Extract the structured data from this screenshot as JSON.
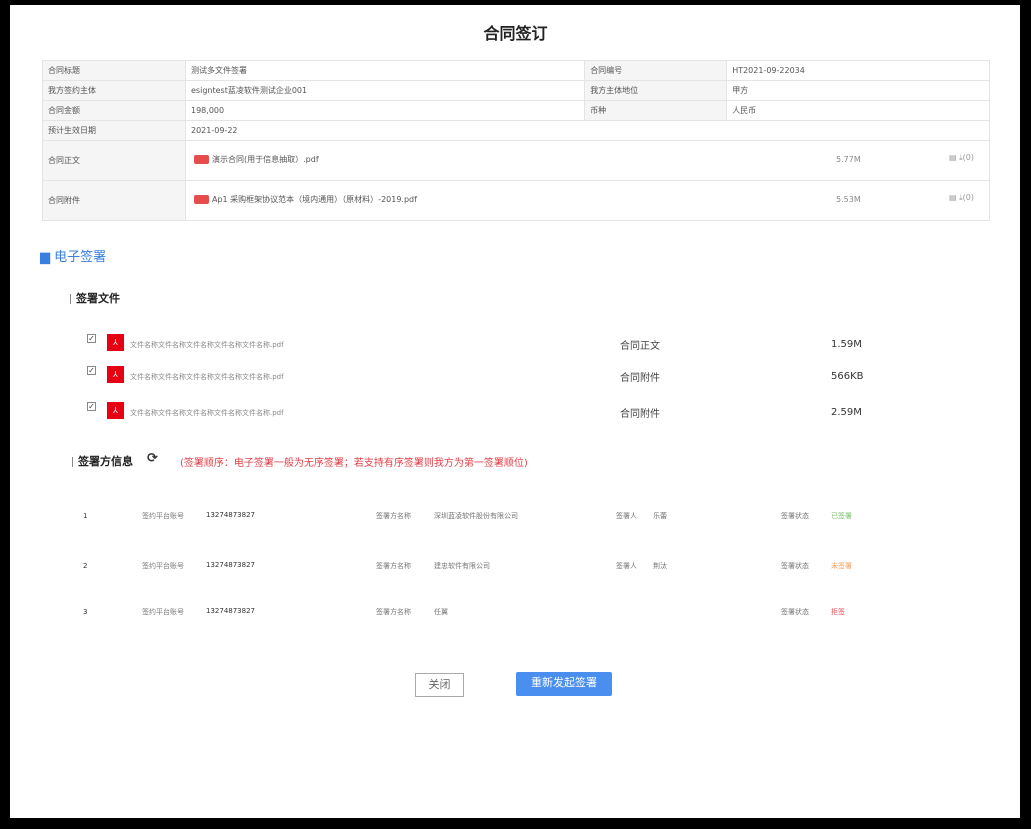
{
  "title": "合同签订",
  "info": {
    "contract_title_label": "合同标题",
    "contract_title": "测试多文件签署",
    "contract_no_label": "合同编号",
    "contract_no": "HT2021-09-22034",
    "our_party_label": "我方签约主体",
    "our_party": "esigntest蓝凌软件测试企业001",
    "our_role_label": "我方主体地位",
    "our_role": "甲方",
    "amount_label": "合同金额",
    "amount": "198,000",
    "currency_label": "币种",
    "currency": "人民币",
    "effective_label": "预计生效日期",
    "effective": "2021-09-22",
    "body_label": "合同正文",
    "body_file": "演示合同(用于信息抽取）.pdf",
    "body_size": "5.77M",
    "body_downloads": "(0)",
    "attach_label": "合同附件",
    "attach_file": "Ap1 采购框架协议范本（境内通用）（原材料）-2019.pdf",
    "attach_size": "5.53M",
    "attach_downloads": "(0)"
  },
  "esign": {
    "title": "电子签署",
    "files_title": "签署文件",
    "files": [
      {
        "name": "文件名称文件名称文件名称文件名称文件名称.pdf",
        "type": "合同正文",
        "size": "1.59M",
        "checked": true
      },
      {
        "name": "文件名称文件名称文件名称文件名称文件名称.pdf",
        "type": "合同附件",
        "size": "566KB",
        "checked": true
      },
      {
        "name": "文件名称文件名称文件名称文件名称文件名称.pdf",
        "type": "合同附件",
        "size": "2.59M",
        "checked": true
      }
    ],
    "signers_title": "签署方信息",
    "signers_note": "(签署顺序：电子签署一般为无序签署；若支持有序签署则我方为第一签署顺位)",
    "labels": {
      "account": "签约平台账号",
      "party": "签署方名称",
      "signer": "签署人",
      "status": "签署状态"
    },
    "signers": [
      {
        "no": "1",
        "account": "13274873827",
        "party": "深圳蓝凌软件股份有限公司",
        "signer": "乐蕾",
        "status": "已签署",
        "color": "#7cc36b"
      },
      {
        "no": "2",
        "account": "13274873827",
        "party": "建忠软件有限公司",
        "signer": "荆汰",
        "status": "未签署",
        "color": "#f0a060"
      },
      {
        "no": "3",
        "account": "13274873827",
        "party": "任翼",
        "signer": "",
        "status": "拒签",
        "color": "#e0505a"
      }
    ]
  },
  "buttons": {
    "close": "关闭",
    "resend": "重新发起签署"
  }
}
